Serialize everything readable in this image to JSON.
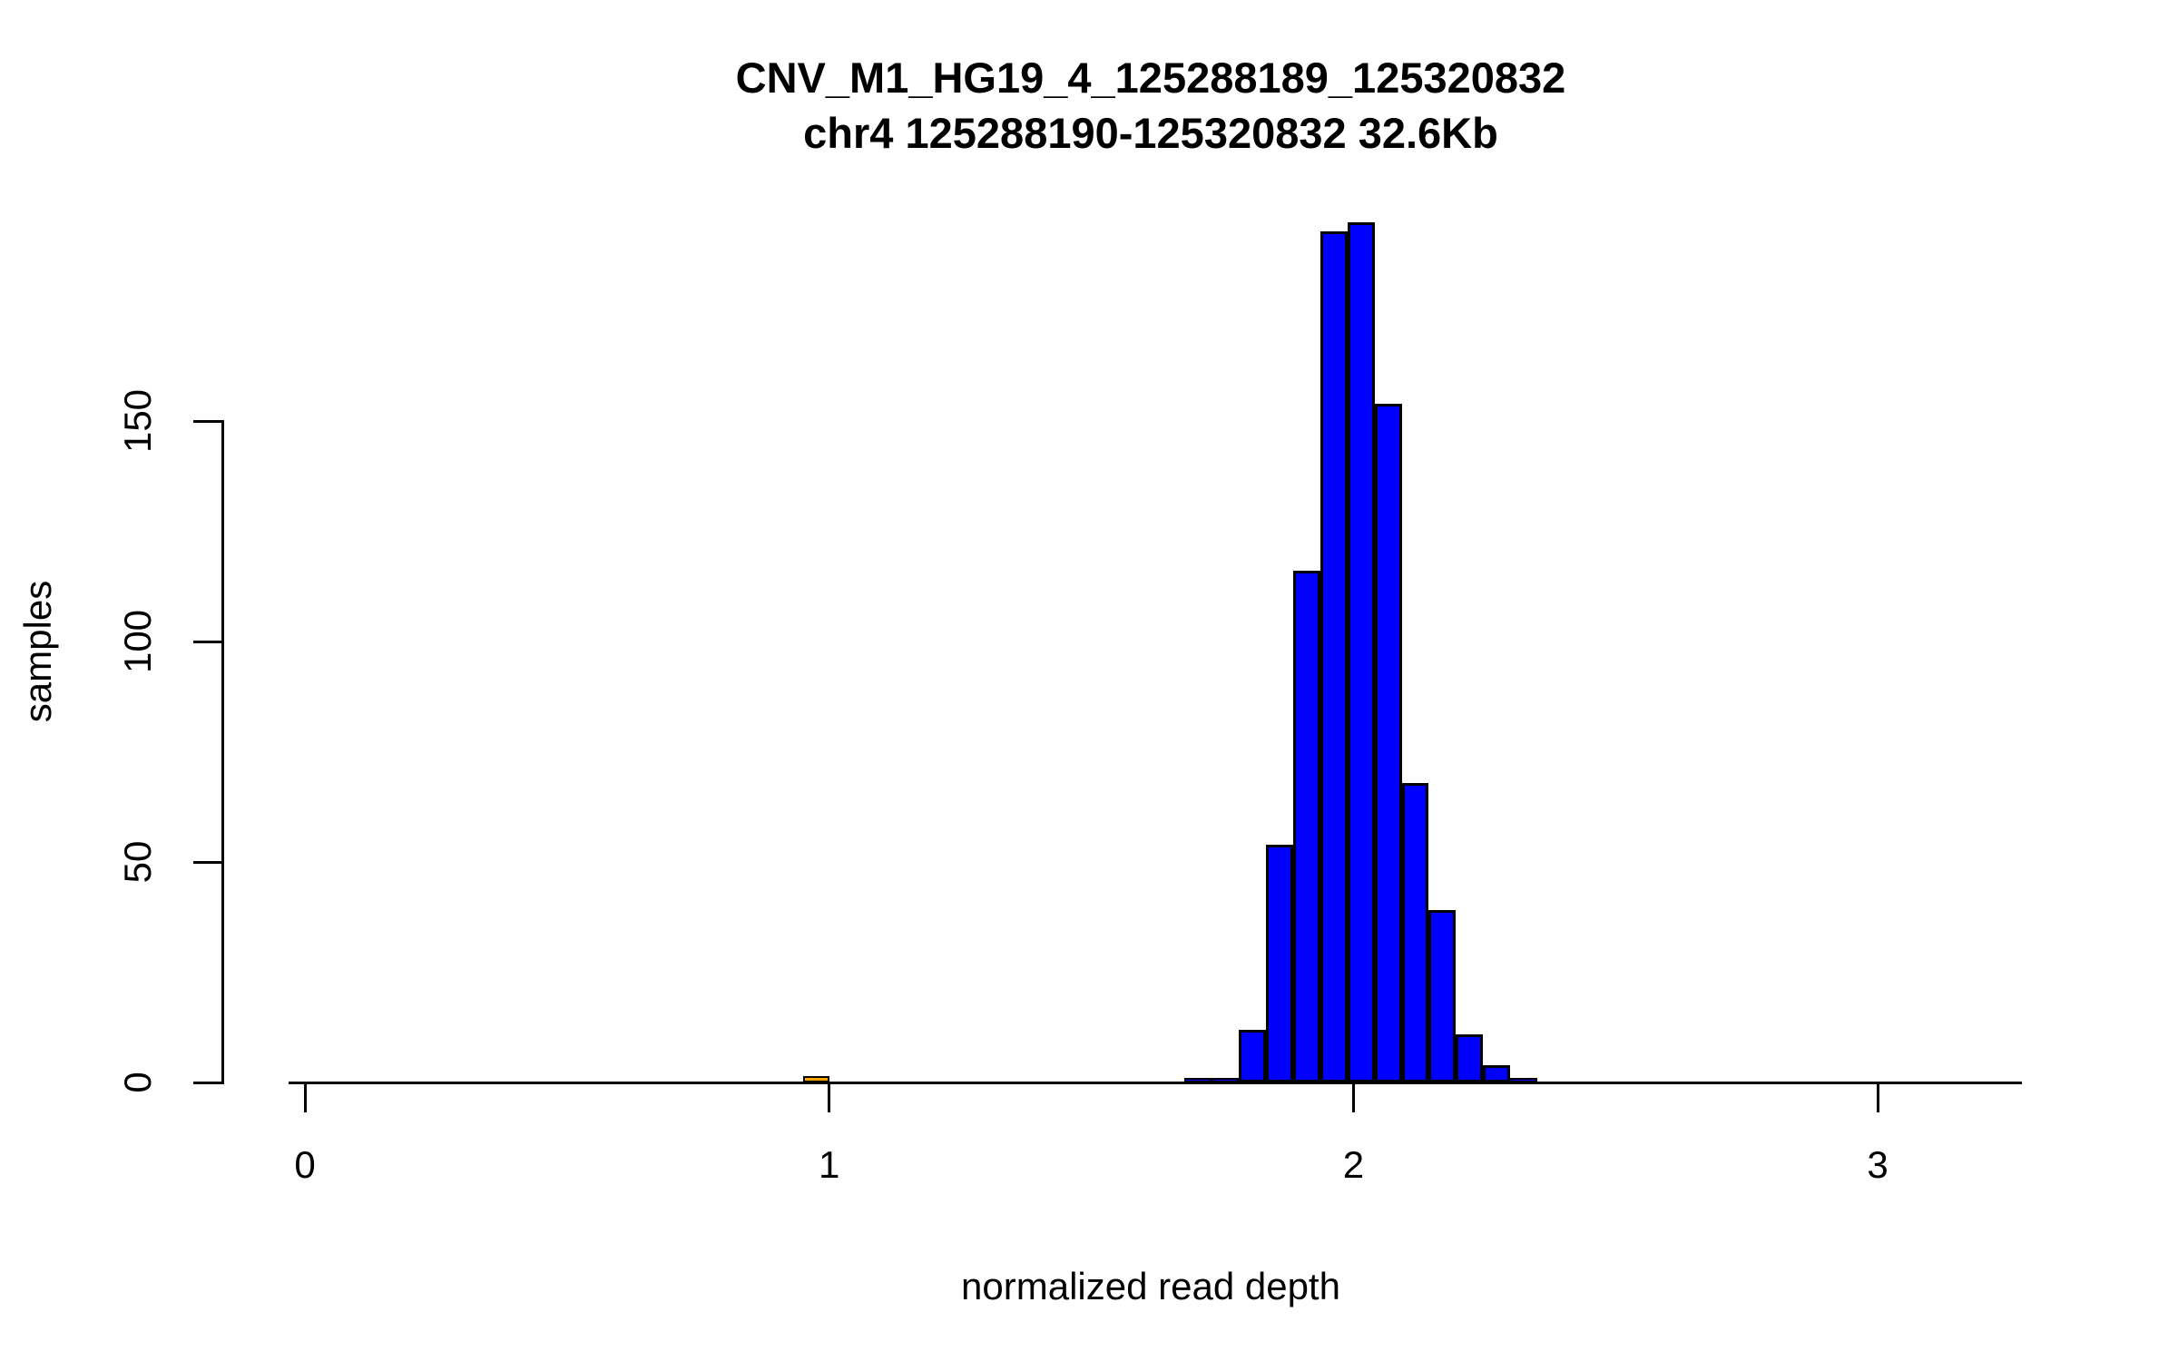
{
  "chart_data": {
    "type": "bar",
    "subtype": "histogram",
    "title": "CNV_M1_HG19_4_125288189_125320832",
    "subtitle": "chr4 125288190-125320832 32.6Kb",
    "xlabel": "normalized read depth",
    "ylabel": "samples",
    "x_ticks": [
      "0",
      "1",
      "2",
      "3"
    ],
    "x_tick_values": [
      0,
      1,
      2,
      3
    ],
    "y_ticks": [
      "0",
      "50",
      "100",
      "150"
    ],
    "y_tick_values": [
      0,
      50,
      100,
      150
    ],
    "xlim": [
      -0.03,
      3.27
    ],
    "ylim": [
      0,
      195
    ],
    "grid": false,
    "legend": false,
    "bar_fill": "#0000FF",
    "bar_border": "#000000",
    "axis_color": "#000000",
    "main_histogram": {
      "bin_width": 0.052,
      "breaks": [
        1.678,
        1.73,
        1.781,
        1.833,
        1.885,
        1.937,
        1.988,
        2.04,
        2.092,
        2.143,
        2.195,
        2.247,
        2.299,
        2.35
      ],
      "counts": [
        1,
        1,
        12,
        54,
        116,
        193,
        195,
        154,
        68,
        39,
        11,
        4,
        1
      ]
    },
    "highlight_bin": {
      "x_left": 0.95,
      "x_right": 1.0,
      "count": 1,
      "fill": "#FFA500"
    }
  }
}
